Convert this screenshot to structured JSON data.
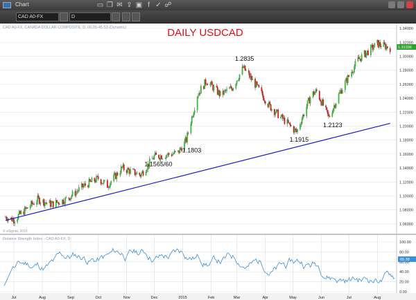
{
  "window": {
    "title": "Chart",
    "symbol_value": "CAD A0-FX",
    "period_value": "D"
  },
  "chart_data": [
    {
      "type": "candlestick",
      "title": "DAILY USDCAD",
      "subtitle": "CAD A0-FX, CANADA DOLLAR COMPOSITE, D, 06.05-45.53 (Dynamic)",
      "x_tick_labels": [
        "Jul",
        "Aug",
        "Sep",
        "Oct",
        "Nov",
        "Dec",
        "2015",
        "Feb",
        "Mar",
        "Apr",
        "May",
        "Jun",
        "Jul",
        "Aug"
      ],
      "y_tick_labels": [
        "1.06000",
        "1.08000",
        "1.10000",
        "1.12000",
        "1.14000",
        "1.16000",
        "1.18000",
        "1.20000",
        "1.22000",
        "1.24000",
        "1.26000",
        "1.28000",
        "1.30000",
        "1.32000",
        "1.34000"
      ],
      "ylim": [
        1.05,
        1.345
      ],
      "last_price": "1.31336",
      "grid": true,
      "annotations": [
        {
          "text": "1.2835",
          "x": "2015-03-17",
          "y": 1.2835
        },
        {
          "text": "1.1803",
          "x": "2015-01-14",
          "y": 1.1803
        },
        {
          "text": "1.1565/60",
          "x": "2014-12-10",
          "y": 1.1565
        },
        {
          "text": "1.1915",
          "x": "2015-05-14",
          "y": 1.1915
        },
        {
          "text": "1.2123",
          "x": "2015-06-18",
          "y": 1.2123
        }
      ],
      "trendline": {
        "color": "#1a1acc",
        "from": {
          "x": "2014-07-01",
          "y": 1.065
        },
        "to": {
          "x": "2015-08-24",
          "y": 1.204
        }
      },
      "up_color": "#3cb83c",
      "down_color": "#cc2020",
      "watermark": "© eSignal, 2015"
    },
    {
      "type": "line",
      "title": "Relative Strength Index - CAD A0-FX, D",
      "series_color": "#3a8fd8",
      "y_tick_labels": [
        "0.00",
        "20.00",
        "40.00",
        "60.00",
        "80.00",
        "100.00"
      ],
      "ylim": [
        0,
        100
      ],
      "last_value": "65.38",
      "grid": true
    }
  ]
}
